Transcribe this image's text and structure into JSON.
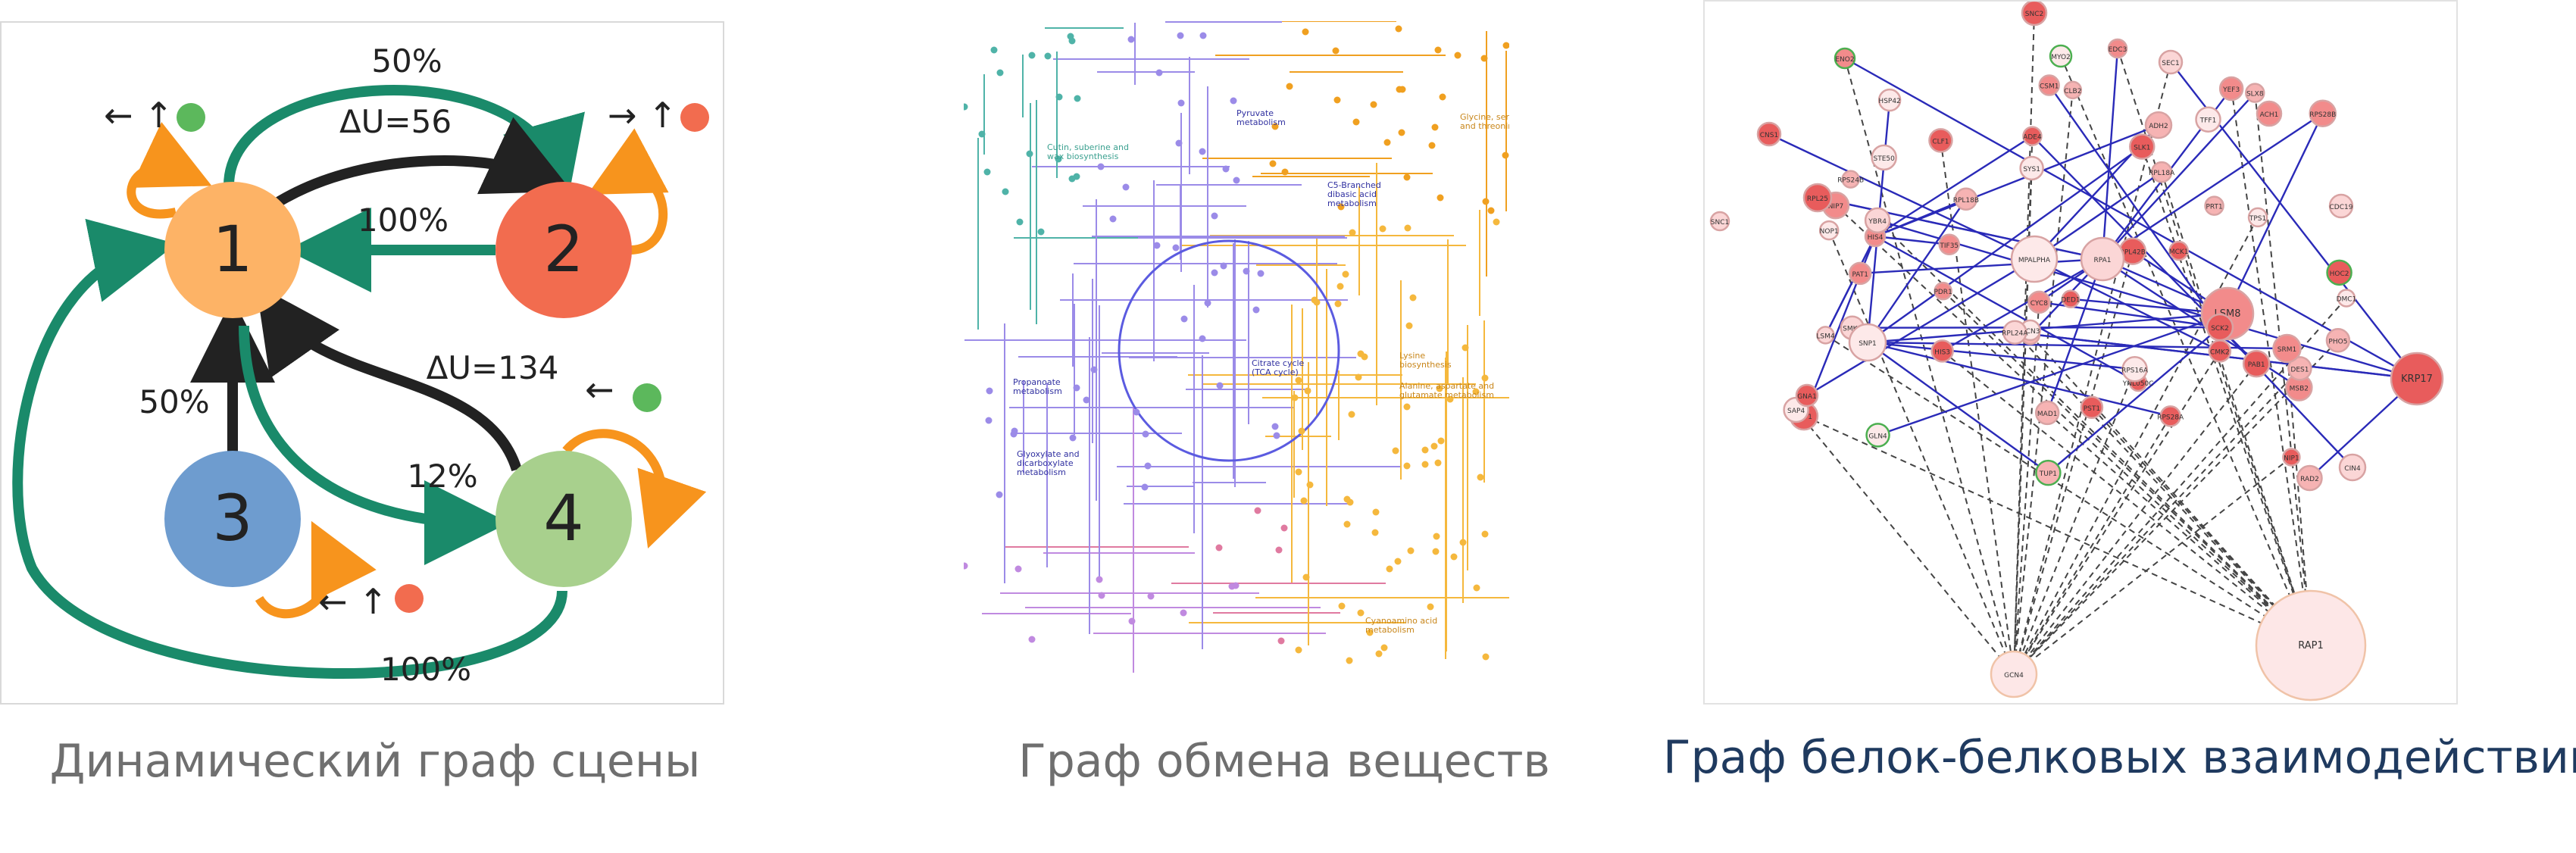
{
  "captions": {
    "scene": "Динамический граф сцены",
    "metabolic": "Граф обмена веществ",
    "ppi": "Граф белок-белковых взаимодействий"
  },
  "colors": {
    "caption_gray": "#6f6f6f",
    "caption_navy": "#1f3a5f",
    "node1": "#fdb366",
    "node2": "#f26c4f",
    "node3": "#6e9ccf",
    "node4": "#a8d08d",
    "edge_green": "#1a8a6a",
    "edge_black": "#222222",
    "self_loop": "#f7941d"
  },
  "scene_graph": {
    "nodes": [
      "1",
      "2",
      "3",
      "4"
    ],
    "edge_labels": {
      "e_1_2_top": "50%",
      "e_1_2_delta": "ΔU=56",
      "e_2_1": "100%",
      "e_3_1": "50%",
      "e_4_1_delta": "ΔU=134",
      "e_1_4": "12%",
      "e_4_1_bottom": "100%"
    },
    "markers": {
      "node1": "← ↑",
      "node2": "→ ↑",
      "node3": "← ↑",
      "node4": "←"
    }
  },
  "metabolic_labels": [
    "Cutin, suberine and\nwax biosynthesis",
    "Pyruvate\nmetabolism",
    "C5-Branched\ndibasic acid\nmetabolism",
    "Citrate cycle\n(TCA cycle)",
    "Propanoate\nmetabolism",
    "Glyoxylate and\ndicarboxylate\nmetabolism",
    "Lysine\nbiosynthesis",
    "Alanine, aspartate and\nglutamate metabolism",
    "Glycine, serine\nand threonine metabolism",
    "Cyanoamino acid\nmetabolism"
  ],
  "ppi_nodes": [
    "SNC2",
    "EDC3",
    "ENO2",
    "MYO2",
    "SEC1",
    "NIP7",
    "RPL42B",
    "RPL18B",
    "NOP1",
    "ILV2",
    "ACH1",
    "CNS1",
    "DED1",
    "GCN3",
    "NIP1",
    "MAD1",
    "PHO5",
    "RPL24A",
    "RPL25",
    "TEF1",
    "RPS24B",
    "CDC19",
    "SNC1",
    "RPL18A",
    "CLF1",
    "HIS4",
    "PRT1",
    "YNL050C",
    "SAP4",
    "MSB2",
    "MPALPHA",
    "RPS28B",
    "RPA1",
    "HSP42",
    "HOC2",
    "PDR1",
    "PAB1",
    "YEF3",
    "SMK1",
    "TFF1",
    "TIF35",
    "LSM8",
    "CMK2",
    "SLK1",
    "SCK2",
    "RAD2",
    "RPS16A",
    "SNP1",
    "GLN4",
    "YBR4",
    "MCK1",
    "TUP1",
    "CYC8",
    "ADH2",
    "GNA1",
    "STE50",
    "TPS1",
    "KRP17",
    "DMC1",
    "PAT1",
    "CLB2",
    "PST1",
    "SYS1",
    "LSM4",
    "ADE4",
    "SLX8",
    "DES1",
    "SRM1",
    "RPS28A",
    "HIS3",
    "CSM1",
    "CIN4",
    "GCN4",
    "RAP1"
  ]
}
